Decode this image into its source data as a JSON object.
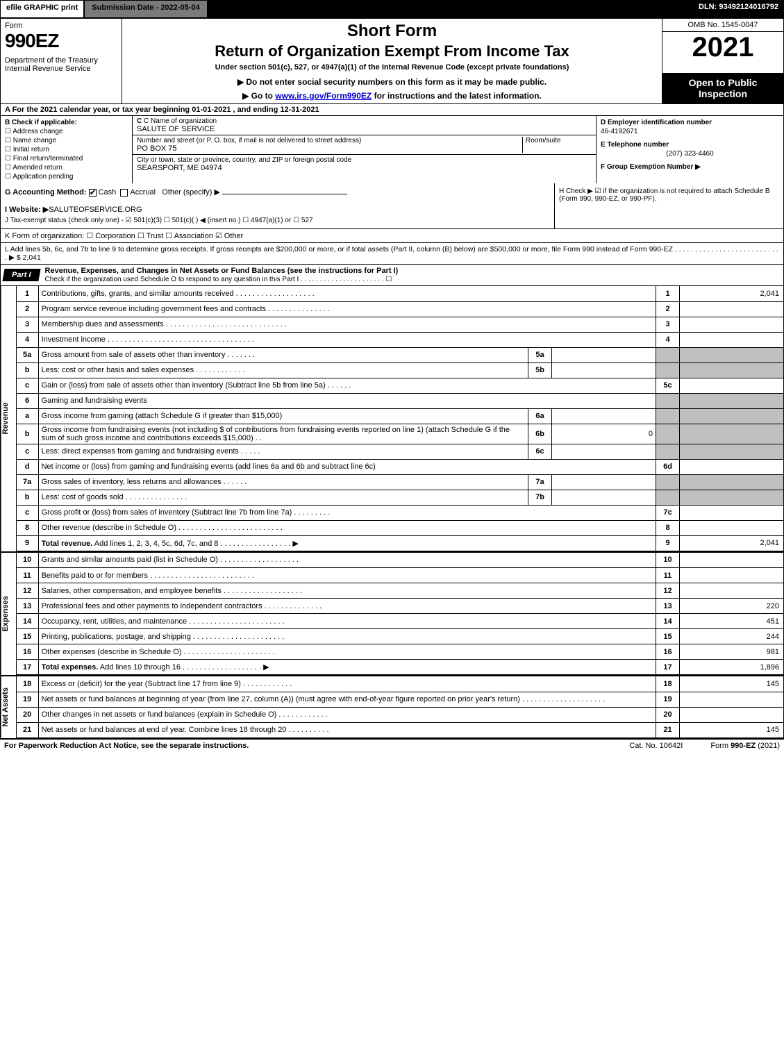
{
  "topbar": {
    "efile": "efile GRAPHIC print",
    "submission": "Submission Date - 2022-05-04",
    "dln": "DLN: 93492124016792"
  },
  "header": {
    "form_label": "Form",
    "form_number": "990EZ",
    "department": "Department of the Treasury\nInternal Revenue Service",
    "short_form": "Short Form",
    "title": "Return of Organization Exempt From Income Tax",
    "under": "Under section 501(c), 527, or 4947(a)(1) of the Internal Revenue Code (except private foundations)",
    "note1_prefix": "▶ Do not enter social security numbers on this form as it may be made public.",
    "note2_prefix": "▶ Go to ",
    "note2_link": "www.irs.gov/Form990EZ",
    "note2_suffix": " for instructions and the latest information.",
    "omb": "OMB No. 1545-0047",
    "year": "2021",
    "open_public": "Open to Public Inspection"
  },
  "sectionA": "A  For the 2021 calendar year, or tax year beginning 01-01-2021 , and ending 12-31-2021",
  "colB": {
    "hdr": "B  Check if applicable:",
    "items": [
      "Address change",
      "Name change",
      "Initial return",
      "Final return/terminated",
      "Amended return",
      "Application pending"
    ]
  },
  "colC": {
    "name_lbl": "C Name of organization",
    "name_val": "SALUTE OF SERVICE",
    "street_lbl": "Number and street (or P. O. box, if mail is not delivered to street address)",
    "room_lbl": "Room/suite",
    "street_val": "PO BOX 75",
    "city_lbl": "City or town, state or province, country, and ZIP or foreign postal code",
    "city_val": "SEARSPORT, ME  04974"
  },
  "colD": {
    "ein_lbl": "D Employer identification number",
    "ein_val": "46-4192671",
    "tel_lbl": "E Telephone number",
    "tel_val": "(207) 323-4460",
    "group_lbl": "F Group Exemption Number  ▶"
  },
  "lineG": {
    "label": "G Accounting Method:",
    "cash": "Cash",
    "accrual": "Accrual",
    "other": "Other (specify) ▶"
  },
  "lineH": "H  Check ▶ ☑ if the organization is not required to attach Schedule B (Form 990, 990-EZ, or 990-PF).",
  "lineI": {
    "label": "I Website: ▶",
    "val": "SALUTEOFSERVICE.ORG"
  },
  "lineJ": "J Tax-exempt status (check only one) - ☑ 501(c)(3)  ☐ 501(c)(  ) ◀ (insert no.)  ☐ 4947(a)(1) or  ☐ 527",
  "lineK": "K Form of organization:  ☐ Corporation  ☐ Trust  ☐ Association  ☑ Other",
  "lineL": "L Add lines 5b, 6c, and 7b to line 9 to determine gross receipts. If gross receipts are $200,000 or more, or if total assets (Part II, column (B) below) are $500,000 or more, file Form 990 instead of Form 990-EZ .  .  .  .  .  .  .  .  .  .  .  .  .  .  .  .  .  .  .  .  .  .  .  .  .  .  .  ▶ $ 2,041",
  "part1": {
    "tab": "Part I",
    "title": "Revenue, Expenses, and Changes in Net Assets or Fund Balances (see the instructions for Part I)",
    "check_line": "Check if the organization used Schedule O to respond to any question in this Part I .  .  .  .  .  .  .  .  .  .  .  .  .  .  .  .  .  .  .  .  .  .  ☐"
  },
  "sections": {
    "revenue_label": "Revenue",
    "expenses_label": "Expenses",
    "netassets_label": "Net Assets"
  },
  "rows": [
    {
      "n": "1",
      "desc": "Contributions, gifts, grants, and similar amounts received .  .  .  .  .  .  .  .  .  .  .  .  .  .  .  .  .  .  .",
      "rn": "1",
      "val": "2,041"
    },
    {
      "n": "2",
      "desc": "Program service revenue including government fees and contracts .  .  .  .  .  .  .  .  .  .  .  .  .  .  .",
      "rn": "2",
      "val": ""
    },
    {
      "n": "3",
      "desc": "Membership dues and assessments .  .  .  .  .  .  .  .  .  .  .  .  .  .  .  .  .  .  .  .  .  .  .  .  .  .  .  .  .",
      "rn": "3",
      "val": ""
    },
    {
      "n": "4",
      "desc": "Investment income .  .  .  .  .  .  .  .  .  .  .  .  .  .  .  .  .  .  .  .  .  .  .  .  .  .  .  .  .  .  .  .  .  .  .",
      "rn": "4",
      "val": ""
    },
    {
      "n": "5a",
      "desc": "Gross amount from sale of assets other than inventory .  .  .  .  .  .  .",
      "sub": "5a",
      "subval": "",
      "shade": true
    },
    {
      "n": "b",
      "desc": "Less: cost or other basis and sales expenses .  .  .  .  .  .  .  .  .  .  .  .",
      "sub": "5b",
      "subval": "",
      "shade": true
    },
    {
      "n": "c",
      "desc": "Gain or (loss) from sale of assets other than inventory (Subtract line 5b from line 5a) .  .  .  .  .  .",
      "rn": "5c",
      "val": ""
    },
    {
      "n": "6",
      "desc": "Gaming and fundraising events",
      "shade": true,
      "noborder": true
    },
    {
      "n": "a",
      "desc": "Gross income from gaming (attach Schedule G if greater than $15,000)",
      "sub": "6a",
      "subval": "",
      "shade": true
    },
    {
      "n": "b",
      "desc": "Gross income from fundraising events (not including $                        of contributions from fundraising events reported on line 1) (attach Schedule G if the sum of such gross income and contributions exceeds $15,000)   .  .",
      "sub": "6b",
      "subval": "0",
      "shade": true
    },
    {
      "n": "c",
      "desc": "Less: direct expenses from gaming and fundraising events  .  .  .  .  .",
      "sub": "6c",
      "subval": "",
      "shade": true
    },
    {
      "n": "d",
      "desc": "Net income or (loss) from gaming and fundraising events (add lines 6a and 6b and subtract line 6c)",
      "rn": "6d",
      "val": ""
    },
    {
      "n": "7a",
      "desc": "Gross sales of inventory, less returns and allowances .  .  .  .  .  .",
      "sub": "7a",
      "subval": "",
      "shade": true
    },
    {
      "n": "b",
      "desc": "Less: cost of goods sold      .  .  .  .  .  .  .  .  .  .  .  .  .  .  .",
      "sub": "7b",
      "subval": "",
      "shade": true
    },
    {
      "n": "c",
      "desc": "Gross profit or (loss) from sales of inventory (Subtract line 7b from line 7a) .  .  .  .  .  .  .  .  .",
      "rn": "7c",
      "val": ""
    },
    {
      "n": "8",
      "desc": "Other revenue (describe in Schedule O) .  .  .  .  .  .  .  .  .  .  .  .  .  .  .  .  .  .  .  .  .  .  .  .  .",
      "rn": "8",
      "val": ""
    },
    {
      "n": "9",
      "desc": "Total revenue. Add lines 1, 2, 3, 4, 5c, 6d, 7c, and 8  .  .  .  .  .  .  .  .  .  .  .  .  .  .  .  .  .  ▶",
      "rn": "9",
      "val": "2,041",
      "bold": true
    }
  ],
  "expense_rows": [
    {
      "n": "10",
      "desc": "Grants and similar amounts paid (list in Schedule O) .  .  .  .  .  .  .  .  .  .  .  .  .  .  .  .  .  .  .",
      "rn": "10",
      "val": ""
    },
    {
      "n": "11",
      "desc": "Benefits paid to or for members     .  .  .  .  .  .  .  .  .  .  .  .  .  .  .  .  .  .  .  .  .  .  .  .  .",
      "rn": "11",
      "val": ""
    },
    {
      "n": "12",
      "desc": "Salaries, other compensation, and employee benefits .  .  .  .  .  .  .  .  .  .  .  .  .  .  .  .  .  .  .",
      "rn": "12",
      "val": ""
    },
    {
      "n": "13",
      "desc": "Professional fees and other payments to independent contractors .  .  .  .  .  .  .  .  .  .  .  .  .  .",
      "rn": "13",
      "val": "220"
    },
    {
      "n": "14",
      "desc": "Occupancy, rent, utilities, and maintenance .  .  .  .  .  .  .  .  .  .  .  .  .  .  .  .  .  .  .  .  .  .  .",
      "rn": "14",
      "val": "451"
    },
    {
      "n": "15",
      "desc": "Printing, publications, postage, and shipping .  .  .  .  .  .  .  .  .  .  .  .  .  .  .  .  .  .  .  .  .  .",
      "rn": "15",
      "val": "244"
    },
    {
      "n": "16",
      "desc": "Other expenses (describe in Schedule O)    .  .  .  .  .  .  .  .  .  .  .  .  .  .  .  .  .  .  .  .  .  .",
      "rn": "16",
      "val": "981"
    },
    {
      "n": "17",
      "desc": "Total expenses. Add lines 10 through 16     .  .  .  .  .  .  .  .  .  .  .  .  .  .  .  .  .  .  .  ▶",
      "rn": "17",
      "val": "1,896",
      "bold": true
    }
  ],
  "net_rows": [
    {
      "n": "18",
      "desc": "Excess or (deficit) for the year (Subtract line 17 from line 9)       .  .  .  .  .  .  .  .  .  .  .  .",
      "rn": "18",
      "val": "145"
    },
    {
      "n": "19",
      "desc": "Net assets or fund balances at beginning of year (from line 27, column (A)) (must agree with end-of-year figure reported on prior year's return) .  .  .  .  .  .  .  .  .  .  .  .  .  .  .  .  .  .  .  .",
      "rn": "19",
      "val": ""
    },
    {
      "n": "20",
      "desc": "Other changes in net assets or fund balances (explain in Schedule O) .  .  .  .  .  .  .  .  .  .  .  .",
      "rn": "20",
      "val": ""
    },
    {
      "n": "21",
      "desc": "Net assets or fund balances at end of year. Combine lines 18 through 20 .  .  .  .  .  .  .  .  .  .",
      "rn": "21",
      "val": "145"
    }
  ],
  "footer": {
    "left": "For Paperwork Reduction Act Notice, see the separate instructions.",
    "mid": "Cat. No. 10642I",
    "right": "Form 990-EZ (2021)"
  }
}
